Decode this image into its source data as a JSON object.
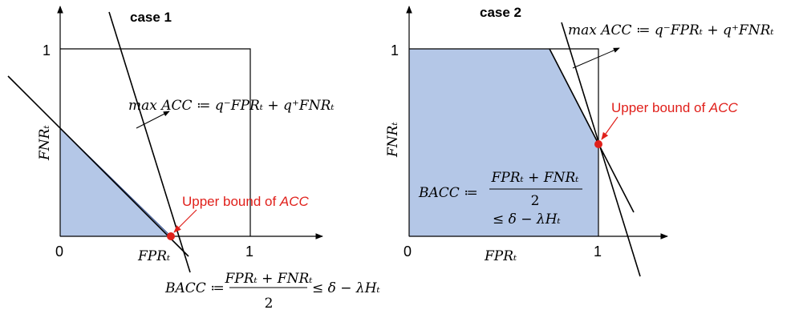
{
  "panel1": {
    "title": "case 1",
    "y_tick_1": "1",
    "x_tick_0": "0",
    "x_tick_1": "1",
    "x_label": "FPRₜ",
    "y_label": "FNRₜ",
    "objective": "max ACC ≔ q⁻FPRₜ + q⁺FNRₜ",
    "upper_bound_prefix": "Upper bound of ",
    "upper_bound_var": "ACC",
    "bacc_lhs": "BACC ≔",
    "bacc_num": "FPRₜ + FNRₜ",
    "bacc_den": "2",
    "bacc_rhs": "≤ δ − λHₜ"
  },
  "panel2": {
    "title": "case 2",
    "y_tick_1": "1",
    "x_tick_0": "0",
    "x_tick_1": "1",
    "x_label": "FPRₜ",
    "y_label": "FNRₜ",
    "objective": "max ACC ≔ q⁻FPRₜ + q⁺FNRₜ",
    "upper_bound_prefix": "Upper bound of ",
    "upper_bound_var": "ACC",
    "bacc_lhs": "BACC ≔",
    "bacc_num": "FPRₜ + FNRₜ",
    "bacc_den": "2",
    "bacc_rhs": "≤ δ − λHₜ"
  },
  "colors": {
    "feasible_fill": "#b4c7e7",
    "feasible_stroke": "#2f4a8a",
    "point": "#e0201b",
    "label_red": "#e0201b",
    "ink": "#000000"
  }
}
